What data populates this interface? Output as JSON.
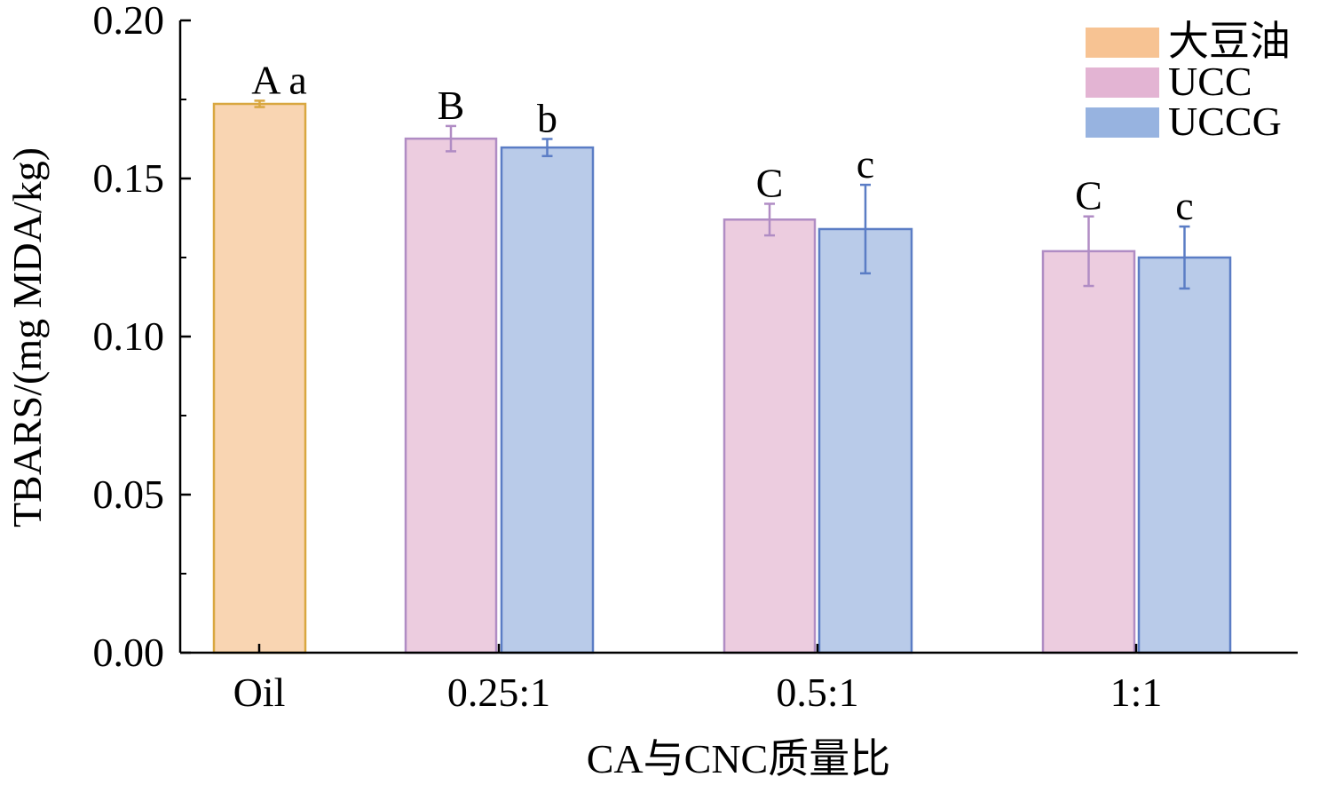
{
  "chart_data": {
    "type": "bar",
    "title": "",
    "xlabel": "CA与CNC质量比",
    "ylabel": "TBARS/(mg MDA/kg)",
    "ylim": [
      0,
      0.2
    ],
    "yticks": [
      "0.00",
      "0.05",
      "0.10",
      "0.15",
      "0.20"
    ],
    "ytick_values": [
      0,
      0.05,
      0.1,
      0.15,
      0.2
    ],
    "categories": [
      "Oil",
      "0.25:1",
      "0.5:1",
      "1:1"
    ],
    "legend_position": "top-right",
    "series": [
      {
        "name": "大豆油",
        "fill": "#f9d5b2",
        "stroke": "#d9a740",
        "swatch": "#f7c393",
        "values": [
          0.1736,
          null,
          null,
          null
        ],
        "errors": [
          0.001,
          null,
          null,
          null
        ],
        "labels": [
          "A a",
          null,
          null,
          null
        ]
      },
      {
        "name": "UCC",
        "fill": "#ecccdf",
        "stroke": "#b08cc4",
        "swatch": "#e3b4d3",
        "values": [
          null,
          0.1626,
          0.137,
          0.127
        ],
        "errors": [
          null,
          0.004,
          0.005,
          0.011
        ],
        "labels": [
          null,
          "B",
          "C",
          "C"
        ]
      },
      {
        "name": "UCCG",
        "fill": "#b9cbe9",
        "stroke": "#5b7dc5",
        "swatch": "#97b3e0",
        "values": [
          null,
          0.1598,
          0.134,
          0.125
        ],
        "errors": [
          null,
          0.0027,
          0.014,
          0.0098
        ],
        "labels": [
          null,
          "b",
          "c",
          "c"
        ]
      }
    ]
  }
}
